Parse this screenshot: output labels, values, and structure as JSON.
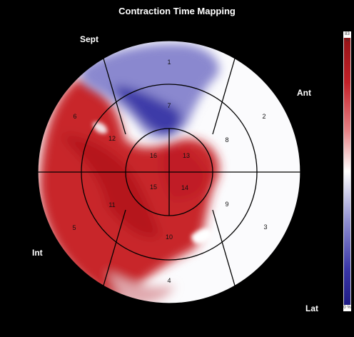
{
  "title": "Contraction Time Mapping",
  "walls": {
    "septal": "Sept",
    "anterior": "Ant",
    "inferior": "Int",
    "lateral": "Lat"
  },
  "segments": {
    "s1": "1",
    "s2": "2",
    "s3": "3",
    "s4": "4",
    "s5": "5",
    "s6": "6",
    "s7": "7",
    "s8": "8",
    "s9": "9",
    "s10": "10",
    "s11": "11",
    "s12": "12",
    "s13": "13",
    "s14": "14",
    "s15": "15",
    "s16": "16"
  },
  "colorbar": {
    "max_label": "83 %",
    "min_label": "0 %",
    "colors": [
      "#8e1114",
      "#ffffff",
      "#1a1780"
    ]
  }
}
